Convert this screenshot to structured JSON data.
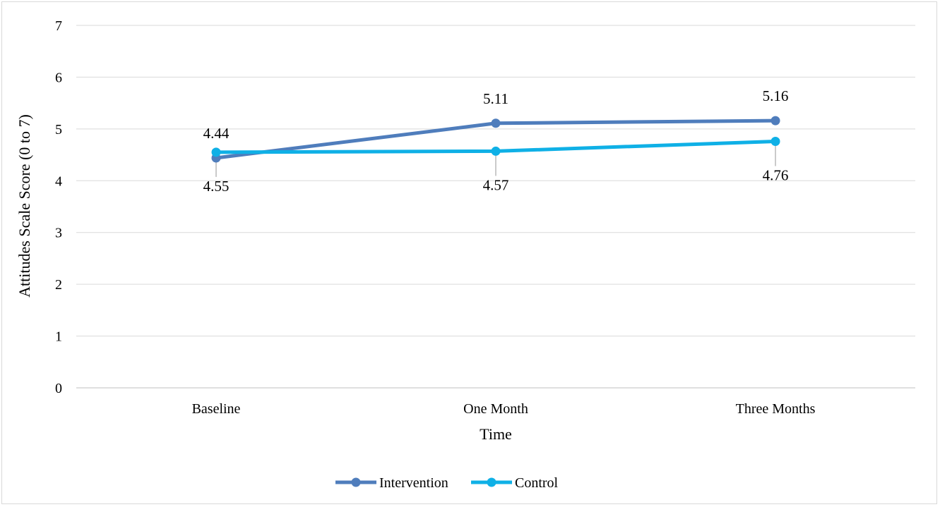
{
  "chart_data": {
    "type": "line",
    "title": "",
    "xlabel": "Time",
    "ylabel": "Attitudes Scale Score (0 to 7)",
    "categories": [
      "Baseline",
      "One Month",
      "Three Months"
    ],
    "ylim": [
      0,
      7
    ],
    "yticks": [
      "0",
      "1",
      "2",
      "3",
      "4",
      "5",
      "6",
      "7"
    ],
    "grid": "horizontal",
    "legend_position": "bottom",
    "series": [
      {
        "name": "Intervention",
        "color": "#4f7dbc",
        "values": [
          4.44,
          5.11,
          5.16
        ],
        "labels": [
          "4.44",
          "5.11",
          "5.16"
        ]
      },
      {
        "name": "Control",
        "color": "#0fb0e6",
        "values": [
          4.55,
          4.57,
          4.76
        ],
        "labels": [
          "4.55",
          "4.57",
          "4.76"
        ]
      }
    ]
  }
}
